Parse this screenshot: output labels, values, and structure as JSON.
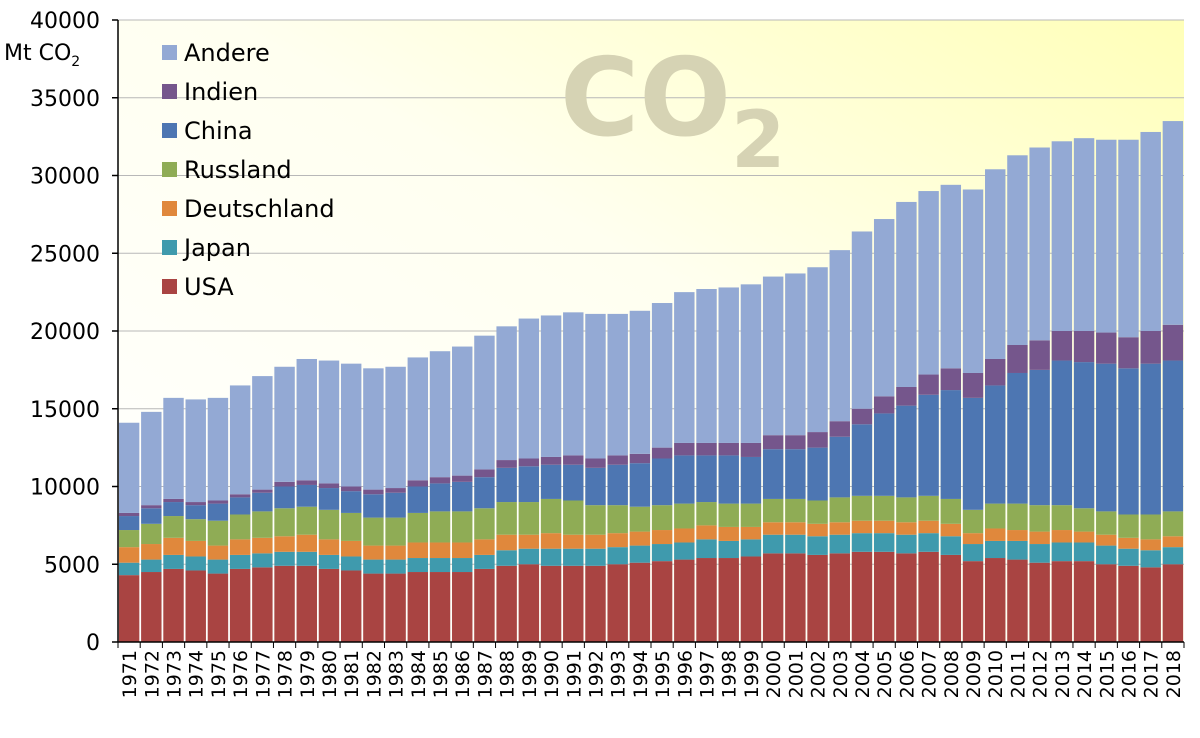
{
  "chart_data": {
    "type": "stacked-bar",
    "title": "",
    "watermark": "CO",
    "watermark_subscript": "2",
    "ylabel": "Mt CO",
    "ylabel_subscript": "2",
    "ylim": [
      0,
      40000
    ],
    "yticks": [
      "0",
      "5000",
      "10000",
      "15000",
      "20000",
      "25000",
      "30000",
      "35000",
      "40000"
    ],
    "grid": true,
    "legend_position": "top-left",
    "categories": [
      "1971",
      "1972",
      "1973",
      "1974",
      "1975",
      "1976",
      "1977",
      "1978",
      "1979",
      "1980",
      "1981",
      "1982",
      "1983",
      "1984",
      "1985",
      "1986",
      "1987",
      "1988",
      "1989",
      "1990",
      "1991",
      "1992",
      "1993",
      "1994",
      "1995",
      "1996",
      "1997",
      "1998",
      "1999",
      "2000",
      "2001",
      "2002",
      "2003",
      "2004",
      "2005",
      "2006",
      "2007",
      "2008",
      "2009",
      "2010",
      "2011",
      "2012",
      "2013",
      "2014",
      "2015",
      "2016",
      "2017",
      "2018"
    ],
    "totals": [
      14100,
      14800,
      15700,
      15600,
      15700,
      16500,
      17100,
      17700,
      18200,
      18100,
      17900,
      17600,
      17700,
      18300,
      18700,
      19000,
      19700,
      20300,
      20800,
      21000,
      21200,
      21100,
      21100,
      21300,
      21800,
      22500,
      22700,
      22800,
      23000,
      23500,
      23700,
      24100,
      25200,
      26400,
      27200,
      28100,
      29000,
      29400,
      29100,
      30400,
      31300,
      31800,
      32200,
      32400,
      32300,
      32300,
      32800,
      33500
    ],
    "series": [
      {
        "name": "USA",
        "color": "#a94442",
        "values": [
          4300,
          4500,
          4700,
          4600,
          4400,
          4700,
          4800,
          4900,
          4900,
          4700,
          4600,
          4400,
          4400,
          4500,
          4500,
          4500,
          4700,
          4900,
          5000,
          4900,
          4900,
          4900,
          5000,
          5100,
          5200,
          5300,
          5400,
          5400,
          5500,
          5700,
          5700,
          5600,
          5700,
          5800,
          5800,
          5700,
          5800,
          5600,
          5200,
          5400,
          5300,
          5100,
          5200,
          5200,
          5000,
          4900,
          4800,
          5000
        ]
      },
      {
        "name": "Japan",
        "color": "#3f9aad",
        "values": [
          800,
          800,
          900,
          900,
          900,
          900,
          900,
          900,
          900,
          900,
          900,
          900,
          900,
          900,
          900,
          900,
          900,
          1000,
          1000,
          1100,
          1100,
          1100,
          1100,
          1100,
          1100,
          1100,
          1200,
          1100,
          1100,
          1200,
          1200,
          1200,
          1200,
          1200,
          1200,
          1200,
          1200,
          1200,
          1100,
          1100,
          1200,
          1200,
          1200,
          1200,
          1200,
          1100,
          1100,
          1100
        ]
      },
      {
        "name": "Deutschland",
        "color": "#e0883c",
        "values": [
          1000,
          1000,
          1100,
          1000,
          900,
          1000,
          1000,
          1000,
          1100,
          1000,
          1000,
          900,
          900,
          1000,
          1000,
          1000,
          1000,
          1000,
          900,
          1000,
          900,
          900,
          900,
          900,
          900,
          900,
          900,
          900,
          800,
          800,
          800,
          800,
          800,
          800,
          800,
          800,
          800,
          800,
          700,
          800,
          700,
          800,
          800,
          700,
          700,
          700,
          700,
          700
        ]
      },
      {
        "name": "Russland",
        "color": "#8fac55",
        "values": [
          1100,
          1300,
          1400,
          1400,
          1600,
          1600,
          1700,
          1800,
          1800,
          1900,
          1800,
          1800,
          1800,
          1900,
          2000,
          2000,
          2000,
          2100,
          2100,
          2200,
          2200,
          1900,
          1800,
          1600,
          1600,
          1600,
          1500,
          1500,
          1500,
          1500,
          1500,
          1500,
          1600,
          1600,
          1600,
          1600,
          1600,
          1600,
          1500,
          1600,
          1700,
          1700,
          1600,
          1500,
          1500,
          1500,
          1600,
          1600
        ]
      },
      {
        "name": "China",
        "color": "#4d76b2",
        "values": [
          900,
          1000,
          900,
          900,
          1100,
          1100,
          1200,
          1400,
          1400,
          1400,
          1400,
          1500,
          1600,
          1700,
          1800,
          1900,
          2000,
          2200,
          2300,
          2200,
          2300,
          2400,
          2600,
          2800,
          3000,
          3100,
          3000,
          3100,
          3000,
          3200,
          3200,
          3400,
          3900,
          4600,
          5300,
          5900,
          6500,
          7000,
          7200,
          7600,
          8400,
          8700,
          9300,
          9400,
          9500,
          9400,
          9700,
          9700
        ]
      },
      {
        "name": "Indien",
        "color": "#75568c",
        "values": [
          200,
          200,
          200,
          200,
          200,
          200,
          200,
          300,
          300,
          300,
          300,
          300,
          300,
          400,
          400,
          400,
          500,
          500,
          500,
          500,
          600,
          600,
          600,
          600,
          700,
          800,
          800,
          800,
          900,
          900,
          900,
          1000,
          1000,
          1000,
          1100,
          1200,
          1300,
          1400,
          1600,
          1700,
          1800,
          1900,
          1900,
          2000,
          2000,
          2000,
          2100,
          2300
        ]
      },
      {
        "name": "Andere",
        "color": "#93a9d4",
        "values": [
          5800,
          6000,
          6500,
          6600,
          6600,
          7000,
          7300,
          7400,
          7800,
          7900,
          7900,
          7800,
          7800,
          7900,
          8100,
          8300,
          8600,
          8600,
          9000,
          9100,
          9200,
          9300,
          9100,
          9200,
          9300,
          9700,
          9900,
          10000,
          10200,
          10200,
          10400,
          10600,
          11000,
          11400,
          11400,
          11900,
          11800,
          11800,
          11800,
          12200,
          12200,
          12400,
          12200,
          12400,
          12400,
          12700,
          12800,
          13100
        ]
      }
    ],
    "legend_order": [
      "Andere",
      "Indien",
      "China",
      "Russland",
      "Deutschland",
      "Japan",
      "USA"
    ]
  }
}
